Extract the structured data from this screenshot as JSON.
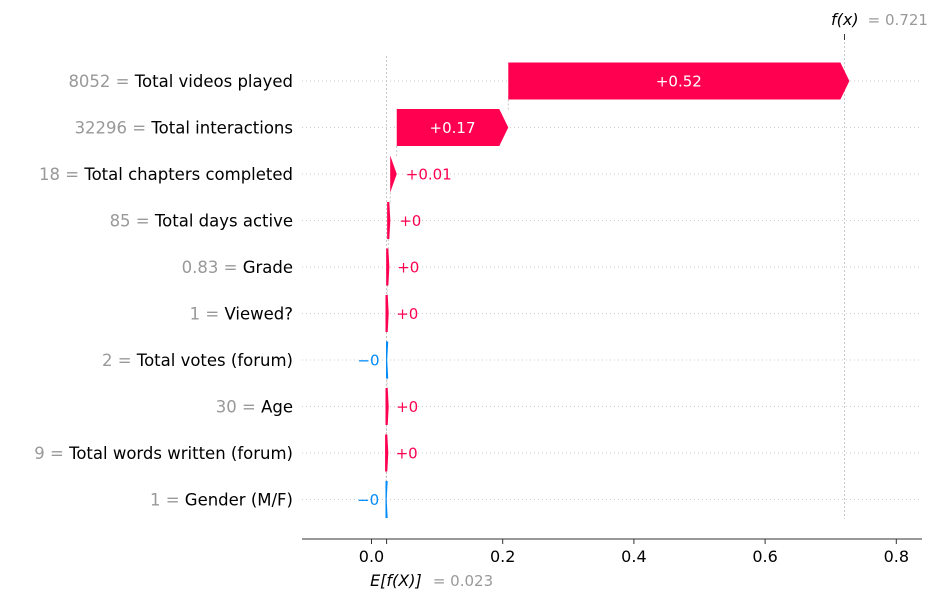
{
  "chart_data": {
    "type": "bar",
    "subtype": "shap-waterfall",
    "base_value": 0.023,
    "output_value": 0.721,
    "base_label": "E[f(X)]",
    "base_value_text": "= 0.023",
    "output_label": "f(x)",
    "output_value_text": "= 0.721",
    "features": [
      {
        "name": "Total videos played",
        "value": "8052",
        "shap": 0.52,
        "label": "+0.52"
      },
      {
        "name": "Total interactions",
        "value": "32296",
        "shap": 0.17,
        "label": "+0.17"
      },
      {
        "name": "Total chapters completed",
        "value": "18",
        "shap": 0.01,
        "label": "+0.01"
      },
      {
        "name": "Total days active",
        "value": "85",
        "shap": 0.003,
        "label": "+0"
      },
      {
        "name": "Grade",
        "value": "0.83",
        "shap": 0.0015,
        "label": "+0"
      },
      {
        "name": "Viewed?",
        "value": "1",
        "shap": 0.001,
        "label": "+0"
      },
      {
        "name": "Total votes (forum)",
        "value": "2",
        "shap": -0.0008,
        "label": "−0"
      },
      {
        "name": "Age",
        "value": "30",
        "shap": 0.0008,
        "label": "+0"
      },
      {
        "name": "Total words written (forum)",
        "value": "9",
        "shap": 0.0006,
        "label": "+0"
      },
      {
        "name": "Gender (M/F)",
        "value": "1",
        "shap": -0.0006,
        "label": "−0"
      }
    ],
    "xticks": [
      0.0,
      0.2,
      0.4,
      0.6,
      0.8
    ],
    "xtick_labels": [
      "0.0",
      "0.2",
      "0.4",
      "0.6",
      "0.8"
    ],
    "xlim": [
      -0.1,
      0.84
    ],
    "colors": {
      "positive": "#ff0051",
      "negative": "#008bfb",
      "muted": "#999999",
      "grid": "#cccccc"
    }
  }
}
